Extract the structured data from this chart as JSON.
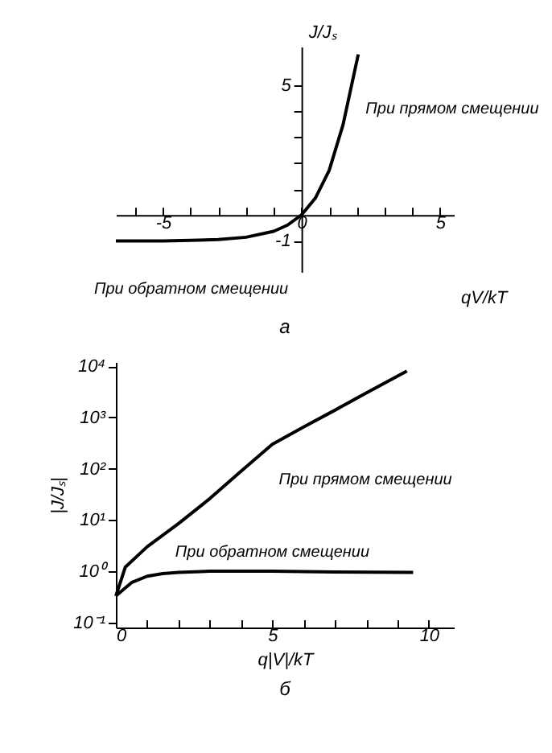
{
  "chart_data": [
    {
      "type": "line",
      "xlabel": "qV/kT",
      "ylabel": "J/Jₛ",
      "annotations": [
        "а",
        {
          "text": "При прямом смещении",
          "x": 1.5,
          "y": 3.48
        },
        {
          "text": "При обратном смещении",
          "x": -4,
          "y": -0.98
        }
      ],
      "xlim": [
        -6.7,
        5.5
      ],
      "ylim": [
        -2.2,
        6.5
      ],
      "xticks": [
        {
          "value": -6,
          "label": null
        },
        -5,
        {
          "value": -4,
          "label": null
        },
        {
          "value": -3,
          "label": null
        },
        {
          "value": -2,
          "label": null
        },
        {
          "value": -1,
          "label": null
        },
        0,
        {
          "value": 1,
          "label": null
        },
        {
          "value": 2,
          "label": null
        },
        {
          "value": 3,
          "label": null
        },
        {
          "value": 4,
          "label": null
        },
        5
      ],
      "yticks": [
        -1,
        {
          "value": 1,
          "label": null
        },
        {
          "value": 2,
          "label": null
        },
        {
          "value": 3,
          "label": null
        },
        {
          "value": 4,
          "label": null
        },
        5
      ],
      "grid": false,
      "series": [
        {
          "color": "#000000",
          "x": [
            -6.7,
            -5,
            -4,
            -3,
            -2,
            -1,
            -0.5,
            0,
            0.5,
            1,
            1.5,
            2.05
          ],
          "values": [
            -1,
            -1,
            -0.98,
            -0.95,
            -0.86,
            -0.63,
            -0.39,
            0,
            0.65,
            1.72,
            3.48,
            6.2
          ]
        }
      ]
    },
    {
      "type": "line",
      "xlabel": "q|V|/kT",
      "ylabel": "|J/Jₛ|",
      "annotations": [
        "б"
      ],
      "log": "y",
      "xlim": [
        0,
        10.8
      ],
      "ylim": [
        0.08,
        12000
      ],
      "xticks": [
        0,
        {
          "value": 1,
          "label": null
        },
        {
          "value": 2,
          "label": null
        },
        {
          "value": 3,
          "label": null
        },
        {
          "value": 4,
          "label": null
        },
        5,
        {
          "value": 6,
          "label": null
        },
        {
          "value": 7,
          "label": null
        },
        {
          "value": 8,
          "label": null
        },
        {
          "value": 9,
          "label": null
        },
        10
      ],
      "yticks": [
        {
          "value": 0.1,
          "label": "10⁻¹"
        },
        {
          "value": 1,
          "label": "10⁰"
        },
        {
          "value": 10,
          "label": "10¹"
        },
        {
          "value": 100,
          "label": "10²"
        },
        {
          "value": 1000,
          "label": "10³"
        },
        {
          "value": 10000,
          "label": "10⁴"
        }
      ],
      "grid": false,
      "legend": false,
      "series": [
        {
          "name": "При прямом смещении",
          "color": "#000000",
          "x": [
            0,
            0.3,
            1,
            2,
            3,
            4,
            5,
            6,
            7,
            8,
            9.3
          ],
          "values": [
            0.33,
            1.2,
            3,
            8.5,
            26,
            89,
            300,
            650,
            1380,
            3000,
            8000
          ]
        },
        {
          "name": "При обратном смещении",
          "color": "#000000",
          "x": [
            0,
            0.5,
            1,
            1.5,
            2,
            3,
            5,
            7,
            9.5
          ],
          "values": [
            0.33,
            0.6,
            0.8,
            0.9,
            0.95,
            1,
            1,
            0.97,
            0.95
          ]
        }
      ]
    }
  ]
}
